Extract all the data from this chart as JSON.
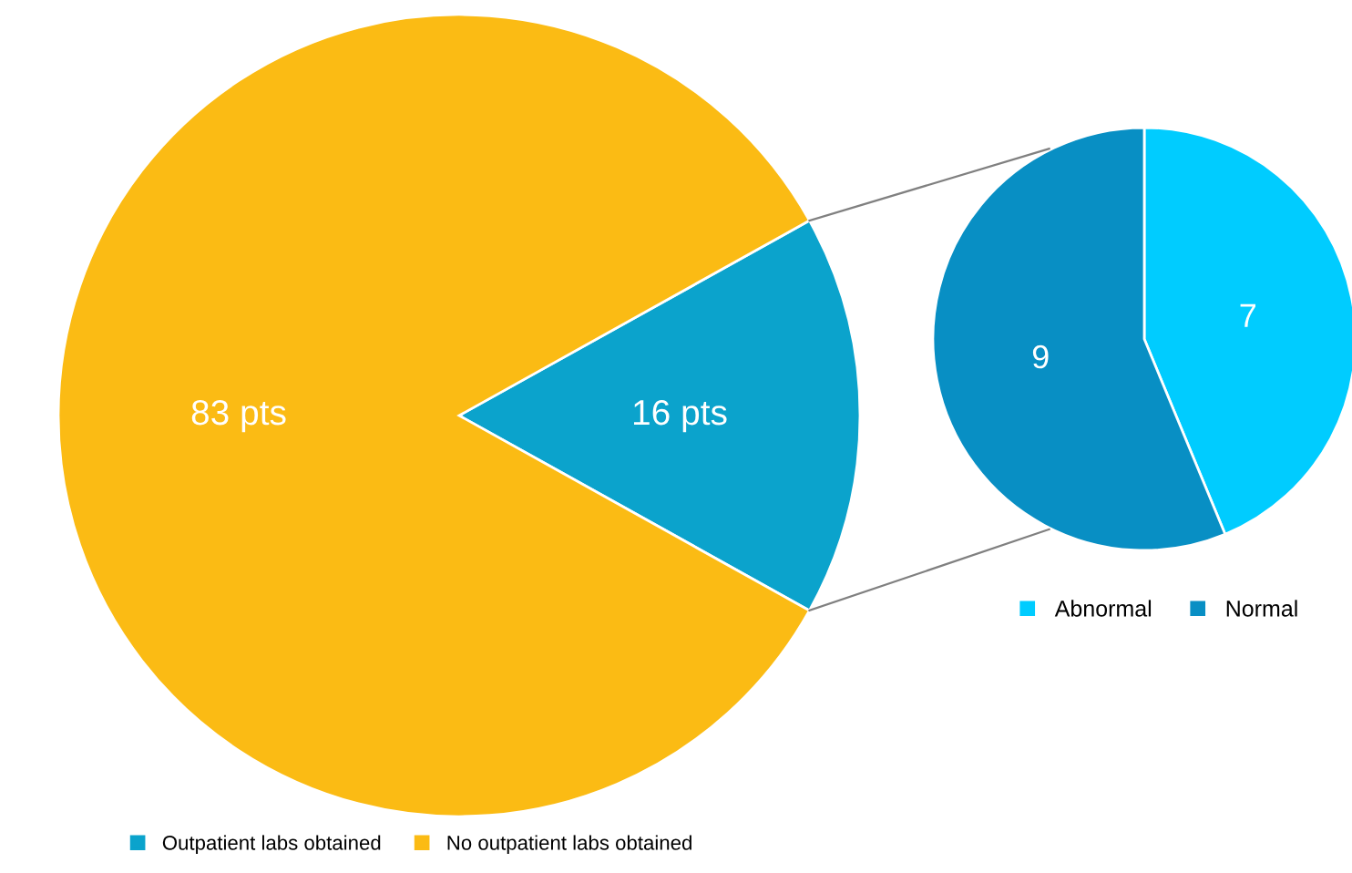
{
  "chart_data": [
    {
      "type": "pie",
      "categories": [
        "Outpatient labs obtained",
        "No outpatient labs obtained"
      ],
      "values": [
        16,
        83
      ],
      "colors": [
        "#0ba3cc",
        "#fbbb14"
      ],
      "value_labels": [
        "16 pts",
        "83 pts"
      ],
      "legend": "bottom left"
    },
    {
      "type": "pie",
      "categories": [
        "Abnormal",
        "Normal"
      ],
      "values": [
        7,
        9
      ],
      "colors": [
        "#00ccff",
        "#088fc4"
      ],
      "data_labels": true,
      "legend": "bottom"
    }
  ]
}
